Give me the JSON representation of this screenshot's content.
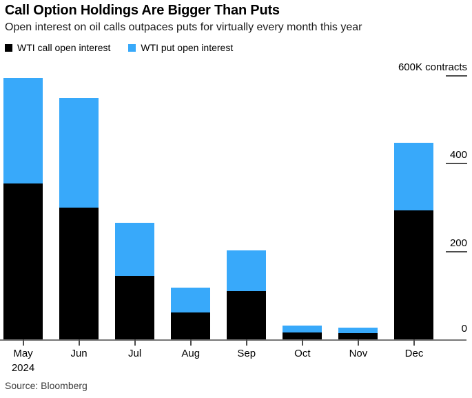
{
  "header": {
    "title": "Call Option Holdings Are Bigger Than Puts",
    "subtitle": "Open interest on oil calls outpaces puts for virtually every month this year"
  },
  "legend": [
    {
      "label": "WTI call open interest",
      "color": "#000000"
    },
    {
      "label": "WTI put open interest",
      "color": "#38A9FA"
    }
  ],
  "y_axis": {
    "top_label": "600K contracts",
    "ticks": [
      {
        "value": 600,
        "label": ""
      },
      {
        "value": 400,
        "label": "400"
      },
      {
        "value": 200,
        "label": "200"
      },
      {
        "value": 0,
        "label": "0"
      }
    ]
  },
  "source": "Source: Bloomberg",
  "chart_data": {
    "type": "bar",
    "stacked": true,
    "title": "Call Option Holdings Are Bigger Than Puts",
    "subtitle": "Open interest on oil calls outpaces puts for virtually every month this year",
    "unit": "K contracts",
    "categories": [
      "May",
      "Jun",
      "Jul",
      "Aug",
      "Sep",
      "Oct",
      "Nov",
      "Dec"
    ],
    "x_sub_label": {
      "index": 0,
      "text": "2024"
    },
    "series": [
      {
        "name": "WTI call open interest",
        "color": "#000000",
        "values": [
          355,
          300,
          145,
          61,
          110,
          15,
          14,
          293
        ]
      },
      {
        "name": "WTI put open interest",
        "color": "#38A9FA",
        "values": [
          240,
          250,
          120,
          57,
          93,
          17,
          13,
          154
        ]
      }
    ],
    "ylim": [
      0,
      600
    ],
    "y_ticks": [
      0,
      200,
      400,
      600
    ],
    "grid": false,
    "legend_position": "top-left",
    "source": "Source: Bloomberg"
  }
}
